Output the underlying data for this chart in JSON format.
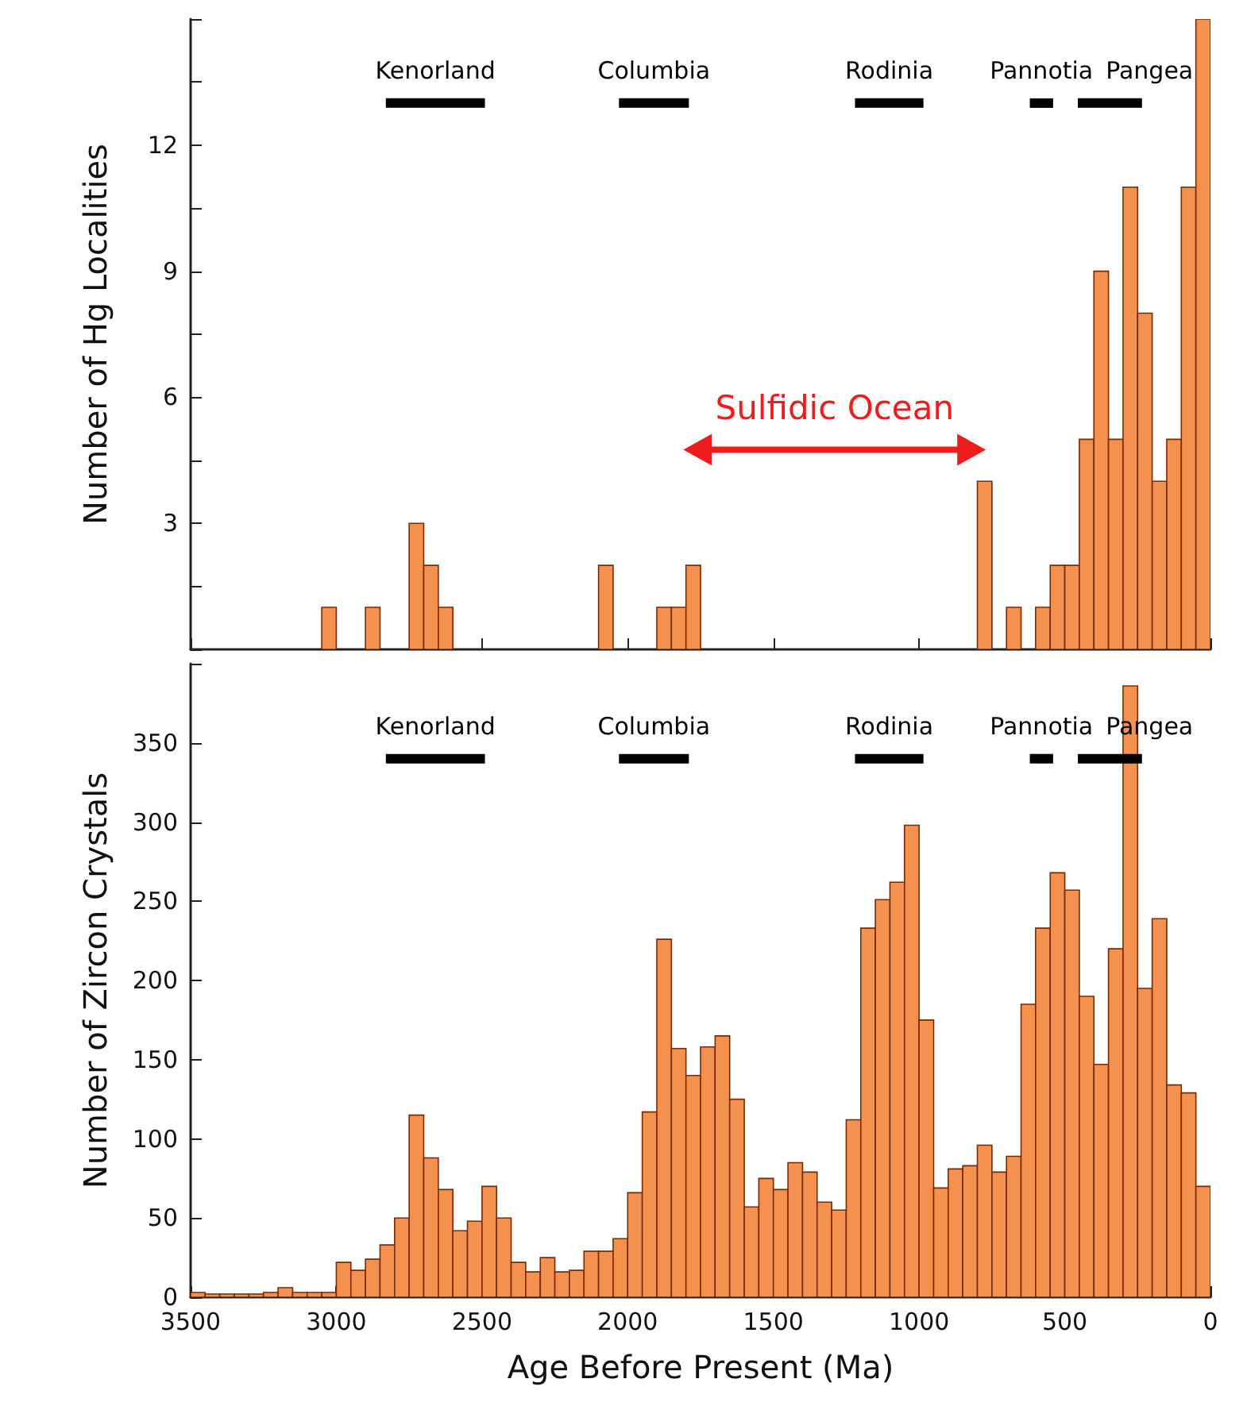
{
  "chart_data": [
    {
      "type": "histogram",
      "ylabel": "Number of Hg Localities",
      "bins": [
        3500,
        3450,
        3400,
        3350,
        3300,
        3250,
        3200,
        3150,
        3100,
        3050,
        3000,
        2950,
        2900,
        2850,
        2800,
        2750,
        2700,
        2650,
        2600,
        2550,
        2500,
        2450,
        2400,
        2350,
        2300,
        2250,
        2200,
        2150,
        2100,
        2050,
        2000,
        1950,
        1900,
        1850,
        1800,
        1750,
        1700,
        1650,
        1600,
        1550,
        1500,
        1450,
        1400,
        1350,
        1300,
        1250,
        1200,
        1150,
        1100,
        1050,
        1000,
        950,
        900,
        850,
        800,
        750,
        700,
        650,
        600,
        550,
        500,
        450,
        400,
        350,
        300,
        250,
        200,
        150,
        100,
        50,
        0
      ],
      "series": [
        {
          "color": "#f4914f",
          "values": [
            0,
            0,
            0,
            0,
            0,
            0,
            0,
            0,
            0,
            1,
            0,
            0,
            1,
            0,
            0,
            3,
            2,
            1,
            0,
            0,
            0,
            0,
            0,
            0,
            0,
            0,
            0,
            0,
            2,
            0,
            0,
            0,
            1,
            1,
            2,
            0,
            0,
            0,
            0,
            0,
            0,
            0,
            0,
            0,
            0,
            0,
            0,
            0,
            0,
            0,
            0,
            0,
            0,
            0,
            4,
            0,
            1,
            0,
            1,
            2,
            2,
            5,
            9,
            5,
            11,
            8,
            4,
            5,
            11,
            15
          ]
        },
        {
          "type": "line",
          "name": "Kenorland",
          "color": "#000000",
          "x": [
            2830,
            2490
          ],
          "values": [
            13,
            13
          ]
        },
        {
          "type": "line",
          "name": "Columbia",
          "color": "#000000",
          "x": [
            2030,
            1790
          ],
          "values": [
            13,
            13
          ]
        },
        {
          "type": "line",
          "name": "Rodinia",
          "color": "#000000",
          "x": [
            1220,
            985
          ],
          "values": [
            13,
            13
          ]
        },
        {
          "type": "line",
          "name": "Pannotia",
          "color": "#000000",
          "x": [
            620,
            540
          ],
          "values": [
            13,
            13
          ]
        },
        {
          "type": "line",
          "name": "Pangea",
          "color": "#000000",
          "x": [
            455,
            235
          ],
          "values": [
            13,
            13
          ]
        },
        {
          "type": "line",
          "name": "Sulfidic Ocean",
          "color": "#ee1c1c",
          "x": [
            1760,
            820
          ],
          "values": [
            4.75,
            4.75
          ],
          "marker": "triangle"
        }
      ],
      "xlim": [
        3500,
        0
      ],
      "xticks": [
        3500,
        3000,
        2500,
        2000,
        1500,
        1000,
        500,
        0
      ],
      "ylim": [
        0,
        15
      ],
      "yticks": [
        {
          "value": 1.5,
          "label": null
        },
        3,
        {
          "value": 4.5,
          "label": null
        },
        6,
        {
          "value": 7.5,
          "label": null
        },
        9,
        {
          "value": 10.5,
          "label": null
        },
        12,
        {
          "value": 13.5,
          "label": null
        }
      ],
      "tick_labels": "y"
    },
    {
      "type": "histogram",
      "xlabel": "Age Before Present (Ma)",
      "ylabel": "Number of Zircon Crystals",
      "bins": [
        3500,
        3450,
        3400,
        3350,
        3300,
        3250,
        3200,
        3150,
        3100,
        3050,
        3000,
        2950,
        2900,
        2850,
        2800,
        2750,
        2700,
        2650,
        2600,
        2550,
        2500,
        2450,
        2400,
        2350,
        2300,
        2250,
        2200,
        2150,
        2100,
        2050,
        2000,
        1950,
        1900,
        1850,
        1800,
        1750,
        1700,
        1650,
        1600,
        1550,
        1500,
        1450,
        1400,
        1350,
        1300,
        1250,
        1200,
        1150,
        1100,
        1050,
        1000,
        950,
        900,
        850,
        800,
        750,
        700,
        650,
        600,
        550,
        500,
        450,
        400,
        350,
        300,
        250,
        200,
        150,
        100,
        50,
        0
      ],
      "series": [
        {
          "color": "#f4914f",
          "values": [
            3,
            2,
            2,
            2,
            2,
            3,
            6,
            3,
            3,
            3,
            22,
            17,
            24,
            33,
            50,
            115,
            88,
            68,
            42,
            48,
            70,
            50,
            22,
            16,
            25,
            16,
            17,
            29,
            29,
            37,
            66,
            117,
            226,
            157,
            140,
            158,
            165,
            125,
            57,
            75,
            68,
            85,
            79,
            60,
            55,
            112,
            233,
            251,
            262,
            298,
            175,
            69,
            81,
            83,
            96,
            79,
            89,
            185,
            233,
            268,
            257,
            190,
            147,
            220,
            386,
            195,
            239,
            134,
            129,
            70
          ]
        },
        {
          "type": "line",
          "name": "Kenorland",
          "color": "#000000",
          "x": [
            2830,
            2490
          ],
          "values": [
            340,
            340
          ]
        },
        {
          "type": "line",
          "name": "Columbia",
          "color": "#000000",
          "x": [
            2030,
            1790
          ],
          "values": [
            340,
            340
          ]
        },
        {
          "type": "line",
          "name": "Rodinia",
          "color": "#000000",
          "x": [
            1220,
            985
          ],
          "values": [
            340,
            340
          ]
        },
        {
          "type": "line",
          "name": "Pannotia",
          "color": "#000000",
          "x": [
            620,
            540
          ],
          "values": [
            340,
            340
          ]
        },
        {
          "type": "line",
          "name": "Pangea",
          "color": "#000000",
          "x": [
            455,
            235
          ],
          "values": [
            340,
            340
          ]
        }
      ],
      "xlim": [
        3500,
        0
      ],
      "xticks": [
        3500,
        3000,
        2500,
        2000,
        1500,
        1000,
        500,
        0
      ],
      "ylim": [
        0,
        400
      ],
      "yticks": [
        0,
        50,
        100,
        150,
        200,
        250,
        300,
        350
      ]
    }
  ]
}
